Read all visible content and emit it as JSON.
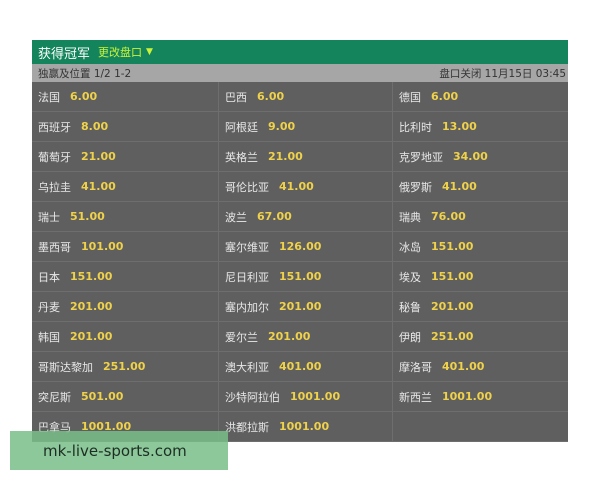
{
  "header": {
    "title": "获得冠军",
    "change_market": "更改盘口",
    "chevron_icon": "chevron-down-icon"
  },
  "subheader": {
    "market": "独赢及位置 1/2 1-2",
    "close_time": "盘口关闭 11月15日 03:45"
  },
  "rows": [
    [
      {
        "team": "法国",
        "odds": "6.00"
      },
      {
        "team": "巴西",
        "odds": "6.00"
      },
      {
        "team": "德国",
        "odds": "6.00"
      }
    ],
    [
      {
        "team": "西班牙",
        "odds": "8.00"
      },
      {
        "team": "阿根廷",
        "odds": "9.00"
      },
      {
        "team": "比利时",
        "odds": "13.00"
      }
    ],
    [
      {
        "team": "葡萄牙",
        "odds": "21.00"
      },
      {
        "team": "英格兰",
        "odds": "21.00"
      },
      {
        "team": "克罗地亚",
        "odds": "34.00"
      }
    ],
    [
      {
        "team": "乌拉圭",
        "odds": "41.00"
      },
      {
        "team": "哥伦比亚",
        "odds": "41.00"
      },
      {
        "team": "俄罗斯",
        "odds": "41.00"
      }
    ],
    [
      {
        "team": "瑞士",
        "odds": "51.00"
      },
      {
        "team": "波兰",
        "odds": "67.00"
      },
      {
        "team": "瑞典",
        "odds": "76.00"
      }
    ],
    [
      {
        "team": "墨西哥",
        "odds": "101.00"
      },
      {
        "team": "塞尔维亚",
        "odds": "126.00"
      },
      {
        "team": "冰岛",
        "odds": "151.00"
      }
    ],
    [
      {
        "team": "日本",
        "odds": "151.00"
      },
      {
        "team": "尼日利亚",
        "odds": "151.00"
      },
      {
        "team": "埃及",
        "odds": "151.00"
      }
    ],
    [
      {
        "team": "丹麦",
        "odds": "201.00"
      },
      {
        "team": "塞内加尔",
        "odds": "201.00"
      },
      {
        "team": "秘鲁",
        "odds": "201.00"
      }
    ],
    [
      {
        "team": "韩国",
        "odds": "201.00"
      },
      {
        "team": "爱尔兰",
        "odds": "201.00"
      },
      {
        "team": "伊朗",
        "odds": "251.00"
      }
    ],
    [
      {
        "team": "哥斯达黎加",
        "odds": "251.00"
      },
      {
        "team": "澳大利亚",
        "odds": "401.00"
      },
      {
        "team": "摩洛哥",
        "odds": "401.00"
      }
    ],
    [
      {
        "team": "突尼斯",
        "odds": "501.00"
      },
      {
        "team": "沙特阿拉伯",
        "odds": "1001.00"
      },
      {
        "team": "新西兰",
        "odds": "1001.00"
      }
    ],
    [
      {
        "team": "巴拿马",
        "odds": "1001.00"
      },
      {
        "team": "洪都拉斯",
        "odds": "1001.00"
      },
      null
    ]
  ],
  "watermark": "mk-live-sports.com",
  "colors": {
    "header_green": "#13845c",
    "odds_yellow": "#f0d24a",
    "grid_gray": "#5f5f5f"
  }
}
